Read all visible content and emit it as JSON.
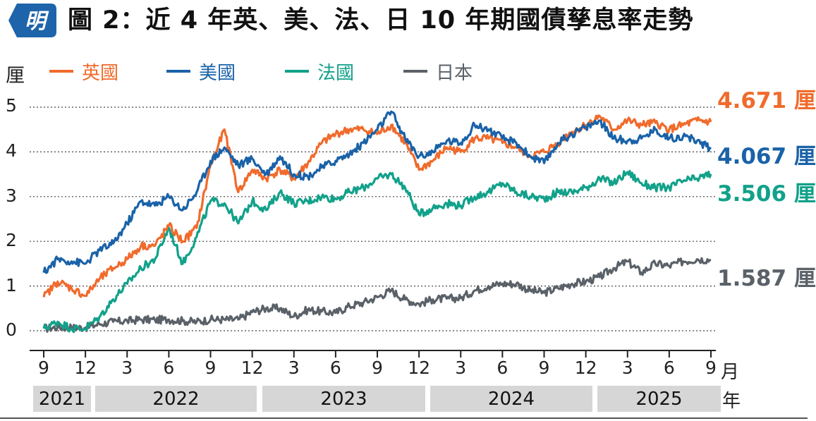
{
  "header": {
    "badge_text": "明",
    "title": "圖 2：近 4 年英、美、法、日 10 年期國債孳息率走勢"
  },
  "colors": {
    "uk": "#f06b2c",
    "us": "#1a62a8",
    "fr": "#12a18a",
    "jp": "#5a6168",
    "badge": "#1e64aa"
  },
  "chart_data": {
    "type": "line",
    "ylabel": "厘",
    "xunit": "月",
    "yearunit": "年",
    "ylim": [
      0,
      5
    ],
    "yticks": [
      "0",
      "1",
      "2",
      "3",
      "4",
      "5"
    ],
    "grid": true,
    "legend_position": "top-left",
    "xticks": [
      "9",
      "12",
      "3",
      "6",
      "9",
      "12",
      "3",
      "6",
      "9",
      "12",
      "3",
      "6",
      "9",
      "12",
      "3",
      "6",
      "9"
    ],
    "years": [
      "2021",
      "2022",
      "2023",
      "2024",
      "2025"
    ],
    "x": [
      "2021-09",
      "2021-12",
      "2022-03",
      "2022-06",
      "2022-09",
      "2022-12",
      "2023-03",
      "2023-06",
      "2023-09",
      "2023-12",
      "2024-03",
      "2024-06",
      "2024-09",
      "2024-12",
      "2025-03",
      "2025-06",
      "2025-09"
    ],
    "series": [
      {
        "key": "uk",
        "name": "英國",
        "end_label": "4.671 厘",
        "points": [
          [
            "2021-09",
            0.75
          ],
          [
            "2021-10",
            1.1
          ],
          [
            "2021-11",
            0.95
          ],
          [
            "2021-12",
            0.78
          ],
          [
            "2022-01",
            1.15
          ],
          [
            "2022-02",
            1.4
          ],
          [
            "2022-03",
            1.6
          ],
          [
            "2022-04",
            1.9
          ],
          [
            "2022-05",
            1.9
          ],
          [
            "2022-06",
            2.35
          ],
          [
            "2022-07",
            2.0
          ],
          [
            "2022-08",
            2.3
          ],
          [
            "2022-09",
            3.7
          ],
          [
            "2022-10",
            4.5
          ],
          [
            "2022-11",
            3.1
          ],
          [
            "2022-12",
            3.6
          ],
          [
            "2023-01",
            3.4
          ],
          [
            "2023-02",
            3.6
          ],
          [
            "2023-03",
            3.4
          ],
          [
            "2023-04",
            3.75
          ],
          [
            "2023-05",
            4.2
          ],
          [
            "2023-06",
            4.4
          ],
          [
            "2023-07",
            4.5
          ],
          [
            "2023-08",
            4.5
          ],
          [
            "2023-09",
            4.4
          ],
          [
            "2023-10",
            4.6
          ],
          [
            "2023-11",
            4.2
          ],
          [
            "2023-12",
            3.6
          ],
          [
            "2024-01",
            3.8
          ],
          [
            "2024-02",
            4.1
          ],
          [
            "2024-03",
            4.0
          ],
          [
            "2024-04",
            4.3
          ],
          [
            "2024-05",
            4.3
          ],
          [
            "2024-06",
            4.2
          ],
          [
            "2024-07",
            4.1
          ],
          [
            "2024-08",
            3.9
          ],
          [
            "2024-09",
            4.0
          ],
          [
            "2024-10",
            4.2
          ],
          [
            "2024-11",
            4.45
          ],
          [
            "2024-12",
            4.6
          ],
          [
            "2025-01",
            4.8
          ],
          [
            "2025-02",
            4.5
          ],
          [
            "2025-03",
            4.7
          ],
          [
            "2025-04",
            4.6
          ],
          [
            "2025-05",
            4.65
          ],
          [
            "2025-06",
            4.5
          ],
          [
            "2025-07",
            4.6
          ],
          [
            "2025-08",
            4.7
          ],
          [
            "2025-09",
            4.671
          ]
        ]
      },
      {
        "key": "us",
        "name": "美國",
        "end_label": "4.067 厘",
        "points": [
          [
            "2021-09",
            1.3
          ],
          [
            "2021-10",
            1.6
          ],
          [
            "2021-11",
            1.55
          ],
          [
            "2021-12",
            1.5
          ],
          [
            "2022-01",
            1.8
          ],
          [
            "2022-02",
            1.95
          ],
          [
            "2022-03",
            2.4
          ],
          [
            "2022-04",
            2.9
          ],
          [
            "2022-05",
            2.8
          ],
          [
            "2022-06",
            3.0
          ],
          [
            "2022-07",
            2.7
          ],
          [
            "2022-08",
            3.1
          ],
          [
            "2022-09",
            3.8
          ],
          [
            "2022-10",
            4.1
          ],
          [
            "2022-11",
            3.7
          ],
          [
            "2022-12",
            3.85
          ],
          [
            "2023-01",
            3.5
          ],
          [
            "2023-02",
            3.9
          ],
          [
            "2023-03",
            3.5
          ],
          [
            "2023-04",
            3.45
          ],
          [
            "2023-05",
            3.65
          ],
          [
            "2023-06",
            3.8
          ],
          [
            "2023-07",
            3.95
          ],
          [
            "2023-08",
            4.2
          ],
          [
            "2023-09",
            4.5
          ],
          [
            "2023-10",
            4.9
          ],
          [
            "2023-11",
            4.3
          ],
          [
            "2023-12",
            3.9
          ],
          [
            "2024-01",
            4.0
          ],
          [
            "2024-02",
            4.25
          ],
          [
            "2024-03",
            4.2
          ],
          [
            "2024-04",
            4.6
          ],
          [
            "2024-05",
            4.5
          ],
          [
            "2024-06",
            4.3
          ],
          [
            "2024-07",
            4.2
          ],
          [
            "2024-08",
            3.9
          ],
          [
            "2024-09",
            3.75
          ],
          [
            "2024-10",
            4.2
          ],
          [
            "2024-11",
            4.4
          ],
          [
            "2024-12",
            4.55
          ],
          [
            "2025-01",
            4.7
          ],
          [
            "2025-02",
            4.3
          ],
          [
            "2025-03",
            4.25
          ],
          [
            "2025-04",
            4.3
          ],
          [
            "2025-05",
            4.5
          ],
          [
            "2025-06",
            4.3
          ],
          [
            "2025-07",
            4.35
          ],
          [
            "2025-08",
            4.25
          ],
          [
            "2025-09",
            4.067
          ]
        ]
      },
      {
        "key": "fr",
        "name": "法國",
        "end_label": "3.506 厘",
        "points": [
          [
            "2021-09",
            0.05
          ],
          [
            "2021-10",
            0.2
          ],
          [
            "2021-11",
            0.05
          ],
          [
            "2021-12",
            0.05
          ],
          [
            "2022-01",
            0.3
          ],
          [
            "2022-02",
            0.7
          ],
          [
            "2022-03",
            1.05
          ],
          [
            "2022-04",
            1.4
          ],
          [
            "2022-05",
            1.6
          ],
          [
            "2022-06",
            2.3
          ],
          [
            "2022-07",
            1.5
          ],
          [
            "2022-08",
            2.1
          ],
          [
            "2022-09",
            2.9
          ],
          [
            "2022-10",
            2.85
          ],
          [
            "2022-11",
            2.4
          ],
          [
            "2022-12",
            2.9
          ],
          [
            "2023-01",
            2.7
          ],
          [
            "2023-02",
            3.1
          ],
          [
            "2023-03",
            2.85
          ],
          [
            "2023-04",
            2.9
          ],
          [
            "2023-05",
            3.0
          ],
          [
            "2023-06",
            2.95
          ],
          [
            "2023-07",
            3.1
          ],
          [
            "2023-08",
            3.2
          ],
          [
            "2023-09",
            3.4
          ],
          [
            "2023-10",
            3.5
          ],
          [
            "2023-11",
            3.2
          ],
          [
            "2023-12",
            2.6
          ],
          [
            "2024-01",
            2.75
          ],
          [
            "2024-02",
            2.85
          ],
          [
            "2024-03",
            2.8
          ],
          [
            "2024-04",
            3.0
          ],
          [
            "2024-05",
            3.1
          ],
          [
            "2024-06",
            3.3
          ],
          [
            "2024-07",
            3.1
          ],
          [
            "2024-08",
            3.0
          ],
          [
            "2024-09",
            2.95
          ],
          [
            "2024-10",
            3.1
          ],
          [
            "2024-11",
            3.1
          ],
          [
            "2024-12",
            3.2
          ],
          [
            "2025-01",
            3.4
          ],
          [
            "2025-02",
            3.3
          ],
          [
            "2025-03",
            3.55
          ],
          [
            "2025-04",
            3.3
          ],
          [
            "2025-05",
            3.2
          ],
          [
            "2025-06",
            3.2
          ],
          [
            "2025-07",
            3.35
          ],
          [
            "2025-08",
            3.4
          ],
          [
            "2025-09",
            3.506
          ]
        ]
      },
      {
        "key": "jp",
        "name": "日本",
        "end_label": "1.587 厘",
        "points": [
          [
            "2021-09",
            0.05
          ],
          [
            "2021-10",
            0.08
          ],
          [
            "2021-11",
            0.07
          ],
          [
            "2021-12",
            0.07
          ],
          [
            "2022-01",
            0.15
          ],
          [
            "2022-02",
            0.2
          ],
          [
            "2022-03",
            0.22
          ],
          [
            "2022-04",
            0.25
          ],
          [
            "2022-05",
            0.24
          ],
          [
            "2022-06",
            0.25
          ],
          [
            "2022-07",
            0.22
          ],
          [
            "2022-08",
            0.2
          ],
          [
            "2022-09",
            0.25
          ],
          [
            "2022-10",
            0.25
          ],
          [
            "2022-11",
            0.25
          ],
          [
            "2022-12",
            0.42
          ],
          [
            "2023-01",
            0.5
          ],
          [
            "2023-02",
            0.5
          ],
          [
            "2023-03",
            0.32
          ],
          [
            "2023-04",
            0.47
          ],
          [
            "2023-05",
            0.43
          ],
          [
            "2023-06",
            0.4
          ],
          [
            "2023-07",
            0.55
          ],
          [
            "2023-08",
            0.63
          ],
          [
            "2023-09",
            0.75
          ],
          [
            "2023-10",
            0.9
          ],
          [
            "2023-11",
            0.7
          ],
          [
            "2023-12",
            0.6
          ],
          [
            "2024-01",
            0.7
          ],
          [
            "2024-02",
            0.72
          ],
          [
            "2024-03",
            0.73
          ],
          [
            "2024-04",
            0.9
          ],
          [
            "2024-05",
            1.0
          ],
          [
            "2024-06",
            1.05
          ],
          [
            "2024-07",
            1.05
          ],
          [
            "2024-08",
            0.9
          ],
          [
            "2024-09",
            0.85
          ],
          [
            "2024-10",
            0.95
          ],
          [
            "2024-11",
            1.05
          ],
          [
            "2024-12",
            1.1
          ],
          [
            "2025-01",
            1.2
          ],
          [
            "2025-02",
            1.4
          ],
          [
            "2025-03",
            1.55
          ],
          [
            "2025-04",
            1.3
          ],
          [
            "2025-05",
            1.5
          ],
          [
            "2025-06",
            1.45
          ],
          [
            "2025-07",
            1.55
          ],
          [
            "2025-08",
            1.6
          ],
          [
            "2025-09",
            1.587
          ]
        ]
      }
    ]
  }
}
